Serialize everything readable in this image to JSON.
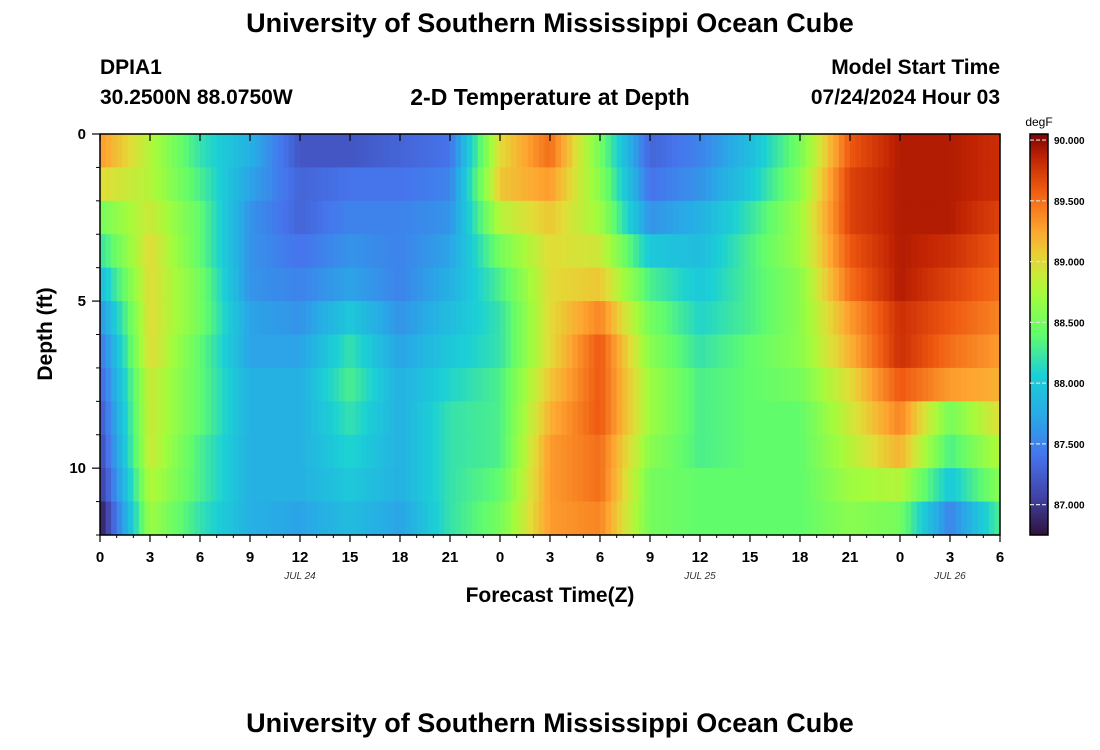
{
  "header": {
    "title": "University of Southern Mississippi Ocean Cube",
    "station": "DPIA1",
    "location": "30.2500N  88.0750W",
    "plot_title": "2-D Temperature at Depth",
    "model_start_label": "Model Start Time",
    "model_start_value": "07/24/2024 Hour 03"
  },
  "footer": {
    "title": "University of Southern Mississippi Ocean Cube"
  },
  "colors": {
    "low": "#30123b",
    "mid": "#a2fc3c",
    "high": "#7a0403"
  },
  "chart_data": {
    "type": "heatmap",
    "title": "2-D Temperature at Depth",
    "xlabel": "Forecast Time(Z)",
    "ylabel": "Depth (ft)",
    "x_range_hours": [
      0,
      54
    ],
    "y_range_ft": [
      0,
      12
    ],
    "x_tick_hours": [
      0,
      3,
      6,
      9,
      12,
      15,
      18,
      21,
      24,
      27,
      30,
      33,
      36,
      39,
      42,
      45,
      48,
      51,
      54
    ],
    "x_tick_labels": [
      "0",
      "3",
      "6",
      "9",
      "12",
      "15",
      "18",
      "21",
      "0",
      "3",
      "6",
      "9",
      "12",
      "15",
      "18",
      "21",
      "0",
      "3",
      "6"
    ],
    "y_ticks": [
      0,
      5,
      10
    ],
    "y_tick_labels": [
      "0",
      "5",
      "10"
    ],
    "date_labels": [
      {
        "text": "JUL 24",
        "hour": 12
      },
      {
        "text": "JUL 25",
        "hour": 36
      },
      {
        "text": "JUL 26",
        "hour": 51
      }
    ],
    "colorbar": {
      "unit": "degF",
      "range": [
        86.75,
        90.05
      ],
      "ticks": [
        87.0,
        87.5,
        88.0,
        88.5,
        89.0,
        89.5,
        90.0
      ],
      "tick_labels": [
        "87.000",
        "87.500",
        "88.000",
        "88.500",
        "89.000",
        "89.500",
        "90.000"
      ]
    },
    "depth_levels_ft": [
      0.5,
      1.5,
      2.5,
      3.5,
      4.5,
      5.5,
      6.5,
      7.5,
      8.5,
      9.5,
      10.5,
      11.5
    ],
    "time_hours": [
      0,
      3,
      6,
      9,
      12,
      15,
      18,
      21,
      24,
      27,
      30,
      33,
      36,
      39,
      42,
      45,
      48,
      51,
      54
    ],
    "values_degF": [
      [
        89.3,
        88.8,
        88.2,
        87.8,
        87.2,
        87.2,
        87.3,
        87.4,
        89.0,
        89.5,
        88.5,
        87.3,
        87.5,
        87.9,
        88.5,
        89.6,
        89.9,
        89.9,
        89.8
      ],
      [
        89.0,
        88.8,
        88.3,
        87.7,
        87.3,
        87.4,
        87.4,
        87.5,
        89.1,
        89.3,
        88.6,
        87.4,
        87.6,
        88.0,
        88.6,
        89.7,
        89.9,
        89.9,
        89.8
      ],
      [
        88.5,
        88.9,
        88.4,
        87.6,
        87.3,
        87.5,
        87.5,
        87.6,
        88.8,
        89.1,
        88.7,
        87.6,
        87.8,
        88.2,
        88.7,
        89.7,
        89.9,
        89.9,
        89.7
      ],
      [
        88.2,
        89.0,
        88.4,
        87.6,
        87.4,
        87.6,
        87.5,
        87.7,
        88.5,
        89.0,
        88.9,
        88.0,
        87.9,
        88.3,
        88.7,
        89.6,
        89.9,
        89.8,
        89.6
      ],
      [
        87.9,
        89.0,
        88.5,
        87.6,
        87.5,
        87.7,
        87.5,
        87.8,
        88.3,
        89.0,
        89.1,
        88.3,
        88.0,
        88.3,
        88.6,
        89.5,
        89.9,
        89.7,
        89.5
      ],
      [
        87.6,
        89.0,
        88.5,
        87.7,
        87.6,
        88.0,
        87.6,
        87.9,
        88.2,
        89.0,
        89.4,
        88.5,
        88.1,
        88.3,
        88.6,
        89.3,
        89.8,
        89.6,
        89.4
      ],
      [
        87.4,
        89.0,
        88.4,
        87.7,
        87.7,
        88.2,
        87.7,
        88.0,
        88.2,
        89.0,
        89.6,
        88.6,
        88.2,
        88.4,
        88.6,
        89.2,
        89.8,
        89.5,
        89.3
      ],
      [
        87.3,
        88.9,
        88.4,
        87.8,
        87.8,
        88.3,
        87.8,
        88.1,
        88.3,
        89.1,
        89.6,
        88.7,
        88.3,
        88.4,
        88.5,
        89.0,
        89.6,
        89.3,
        89.2
      ],
      [
        87.2,
        88.9,
        88.4,
        87.8,
        87.8,
        88.2,
        87.8,
        88.2,
        88.3,
        89.2,
        89.6,
        88.7,
        88.3,
        88.4,
        88.4,
        88.9,
        89.4,
        88.5,
        89.0
      ],
      [
        87.1,
        88.9,
        88.3,
        87.8,
        87.8,
        88.1,
        87.8,
        88.2,
        88.3,
        89.3,
        89.5,
        88.6,
        88.3,
        88.4,
        88.4,
        88.8,
        89.2,
        88.3,
        88.8
      ],
      [
        87.0,
        88.8,
        88.3,
        87.8,
        87.8,
        88.0,
        87.8,
        88.2,
        88.4,
        89.3,
        89.5,
        88.5,
        88.4,
        88.4,
        88.4,
        88.7,
        88.8,
        88.0,
        88.6
      ],
      [
        86.8,
        88.7,
        88.2,
        87.8,
        87.7,
        87.9,
        87.7,
        88.2,
        88.5,
        89.3,
        89.4,
        88.5,
        88.4,
        88.4,
        88.4,
        88.6,
        88.5,
        87.5,
        88.3
      ]
    ]
  }
}
